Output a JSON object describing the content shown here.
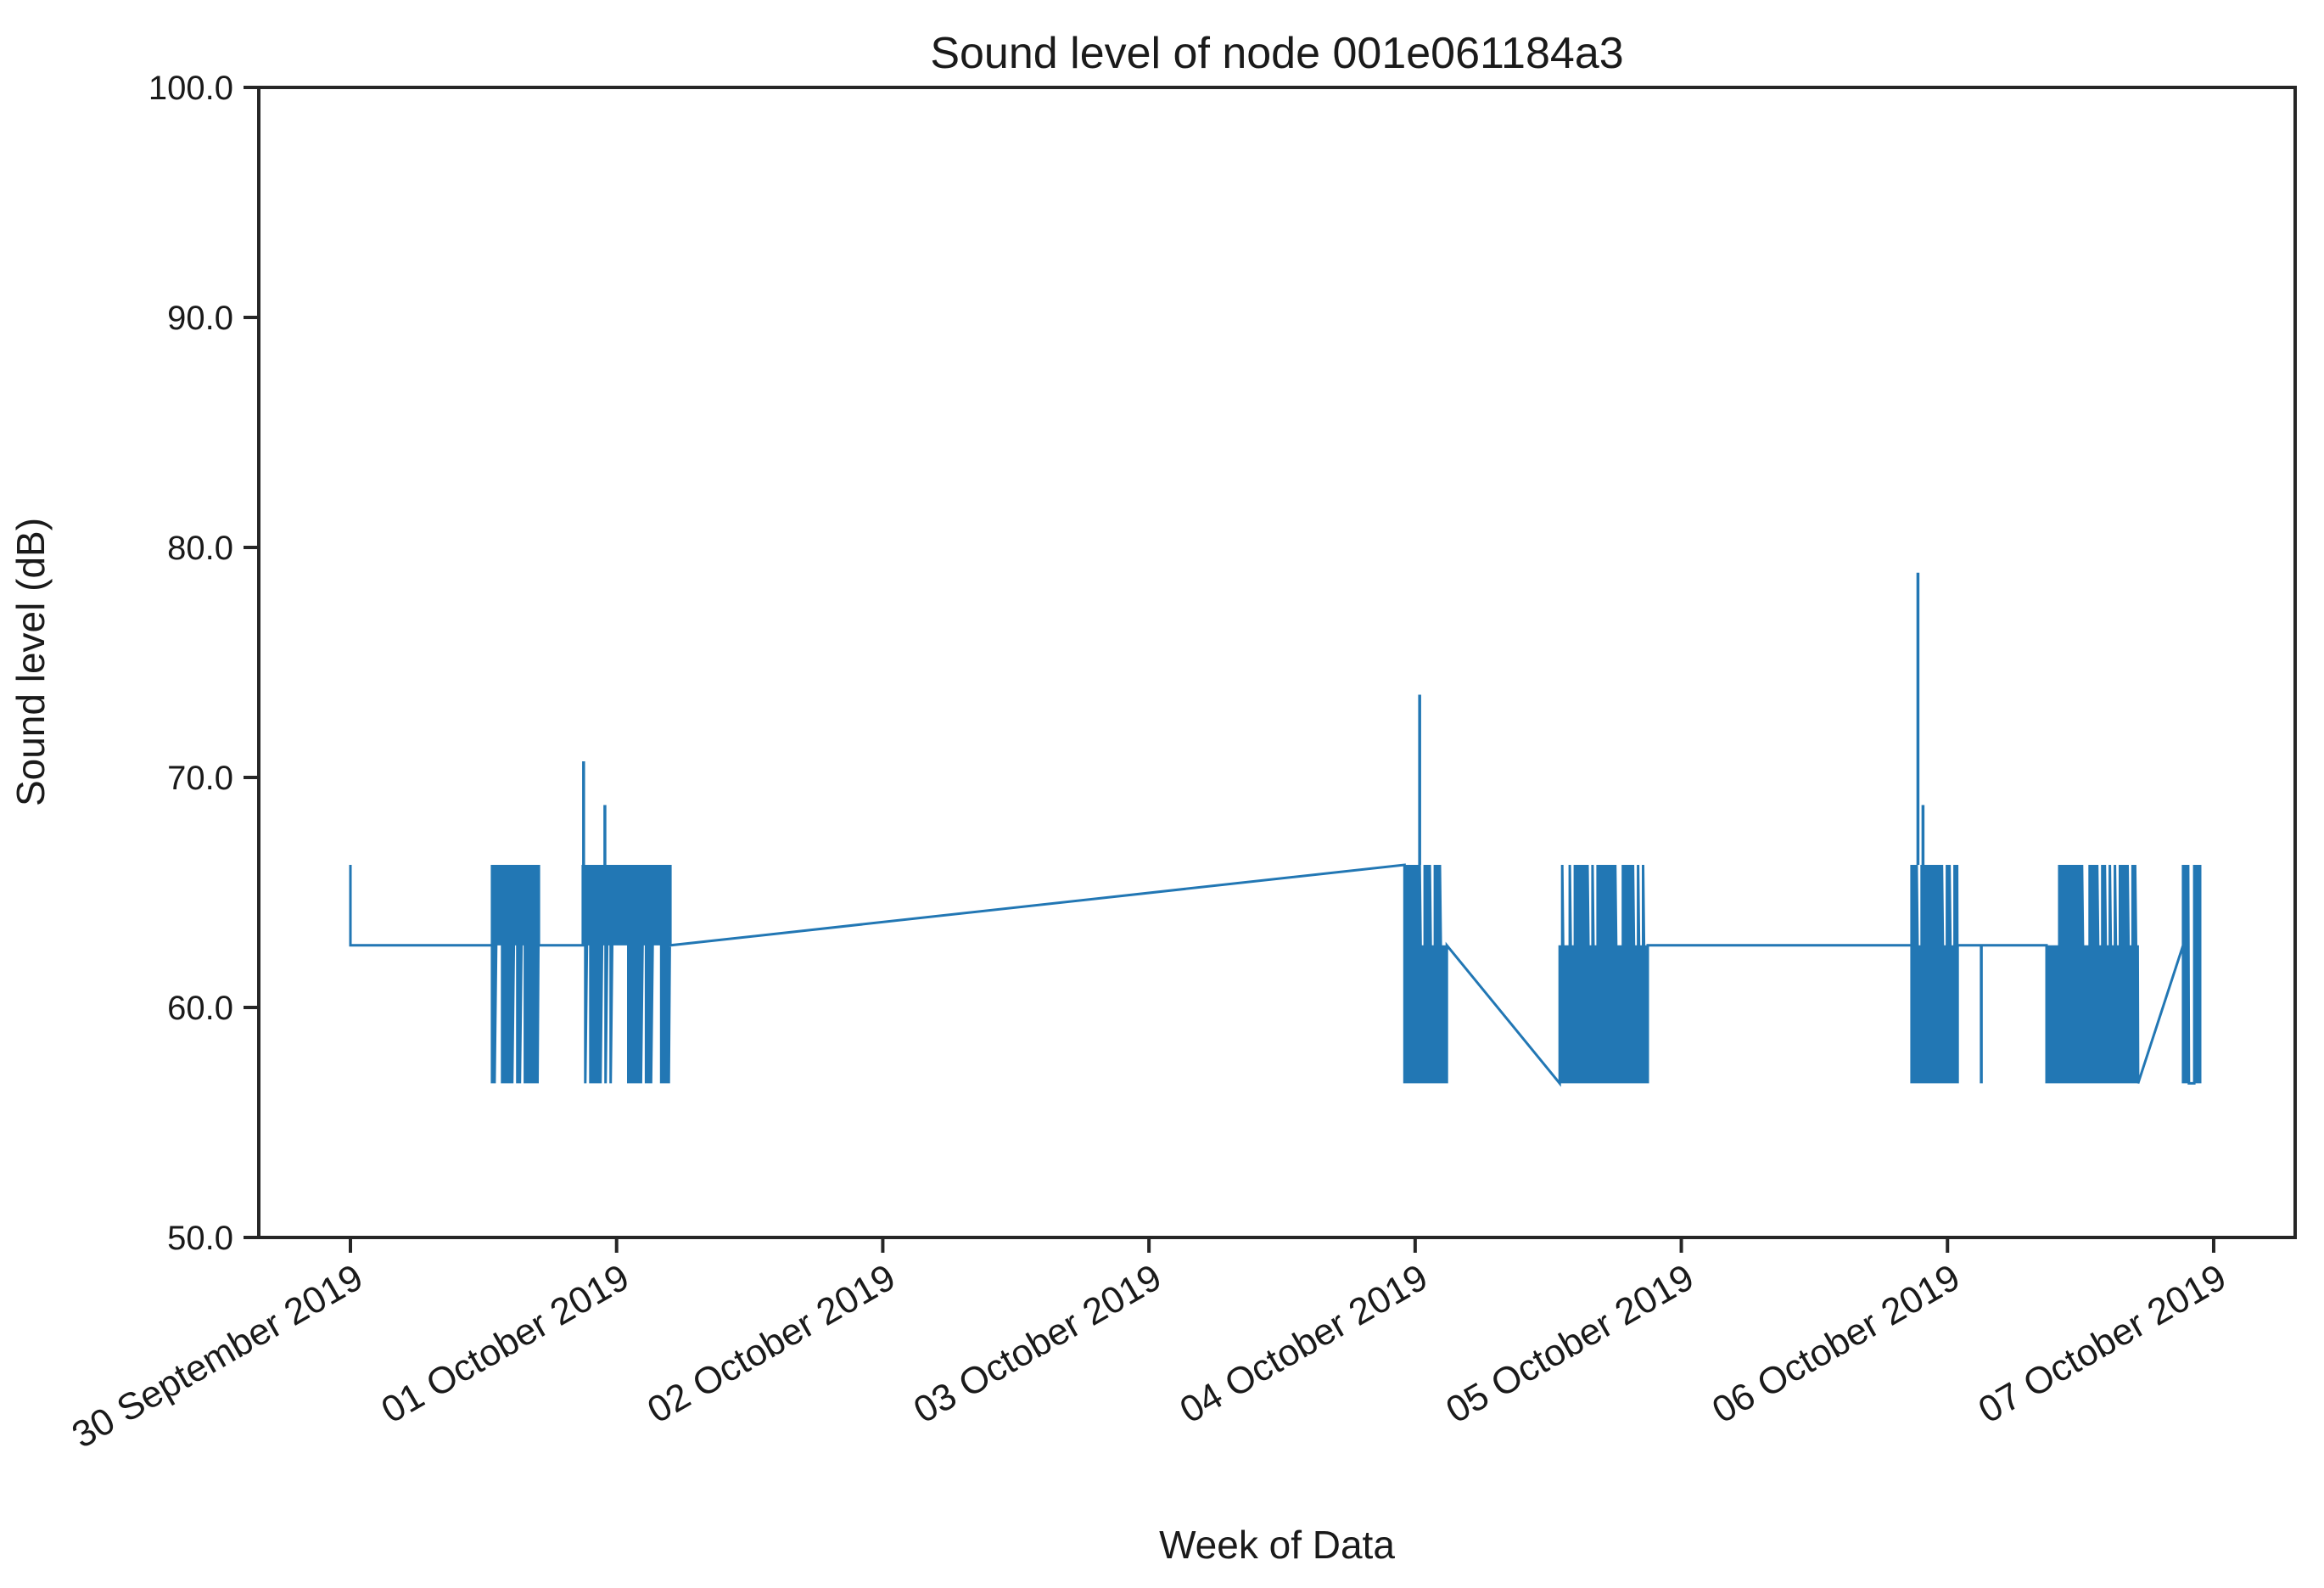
{
  "chart_data": {
    "type": "line",
    "title": "Sound level of node 001e061184a3",
    "node_id": "001e061184a3",
    "xlabel": "Week of Data",
    "ylabel": "Sound level (dB)",
    "ylim": [
      50.0,
      100.0
    ],
    "xlim_days": [
      -0.344,
      7.306
    ],
    "grid": false,
    "legend": null,
    "line_color": "#2277b4",
    "axis_color": "#262626",
    "yticks": {
      "values": [
        50,
        60,
        70,
        80,
        90,
        100
      ],
      "labels": [
        "50.0",
        "60.0",
        "70.0",
        "80.0",
        "90.0",
        "100.0"
      ]
    },
    "xticks": {
      "days": [
        0,
        1,
        2,
        3,
        4,
        5,
        6,
        7
      ],
      "labels": [
        "30 September 2019",
        "01 October 2019",
        "02 October 2019",
        "03 October 2019",
        "04 October 2019",
        "05 October 2019",
        "06 October 2019",
        "07 October 2019"
      ]
    },
    "levels_db": {
      "baseline": 62.7,
      "burst_high": 66.2,
      "burst_low": 56.7
    },
    "spikes": [
      {
        "x": 0.876,
        "tip": 70.7,
        "base": 66.2
      },
      {
        "x": 0.956,
        "tip": 68.8,
        "base": 66.2
      },
      {
        "x": 4.017,
        "tip": 73.6,
        "base": 66.2
      },
      {
        "x": 5.889,
        "tip": 78.9,
        "base": 66.2
      },
      {
        "x": 5.908,
        "tip": 68.8,
        "base": 66.2
      },
      {
        "x": 6.127,
        "tip": 56.7,
        "base": 62.7
      }
    ],
    "segments": [
      {
        "type": "pts",
        "pts": [
          [
            0.0,
            66.2
          ],
          [
            0.0,
            62.7
          ],
          [
            0.532,
            62.7
          ]
        ]
      },
      {
        "type": "burst",
        "x0": 0.532,
        "x1": 0.708,
        "anchor": 66.2,
        "base": 62.7,
        "ext": 56.7,
        "p": 0.58,
        "exit": 62.7
      },
      {
        "type": "pts",
        "pts": [
          [
            0.873,
            62.7
          ]
        ]
      },
      {
        "type": "burst",
        "x0": 0.873,
        "x1": 1.202,
        "anchor": 66.2,
        "base": 62.7,
        "ext": 56.7,
        "p": 0.58,
        "exit": 62.7
      },
      {
        "type": "pts",
        "pts": [
          [
            3.96,
            66.2
          ]
        ]
      },
      {
        "type": "burst",
        "x0": 3.96,
        "x1": 4.119,
        "anchor": 56.7,
        "base": 62.7,
        "ext": 66.2,
        "p": 0.85,
        "exit": 62.7
      },
      {
        "type": "pts",
        "pts": [
          [
            4.543,
            56.7
          ]
        ]
      },
      {
        "type": "burst",
        "x0": 4.543,
        "x1": 4.874,
        "anchor": 56.7,
        "base": 62.7,
        "ext": 66.2,
        "p": 0.78,
        "exit": 62.7
      },
      {
        "type": "pts",
        "pts": [
          [
            5.865,
            62.7
          ]
        ]
      },
      {
        "type": "burst",
        "x0": 5.865,
        "x1": 6.038,
        "anchor": 56.7,
        "base": 62.7,
        "ext": 66.2,
        "p": 0.93,
        "exit": 62.7
      },
      {
        "type": "pts",
        "pts": [
          [
            6.372,
            62.7
          ]
        ]
      },
      {
        "type": "burst",
        "x0": 6.372,
        "x1": 6.42,
        "anchor": 56.7,
        "base": 62.7,
        "ext": 66.2,
        "p": 0.0,
        "exit": 62.7
      },
      {
        "type": "burst",
        "x0": 6.42,
        "x1": 6.716,
        "anchor": 56.7,
        "base": 62.7,
        "ext": 66.2,
        "p": 0.72,
        "exit": 56.7
      },
      {
        "type": "pts",
        "pts": [
          [
            6.885,
            62.7
          ]
        ]
      },
      {
        "type": "burst",
        "x0": 6.885,
        "x1": 6.907,
        "anchor": 56.7,
        "base": 66.2,
        "ext": 66.2,
        "p": 1.0,
        "exit": 56.7
      },
      {
        "type": "pts",
        "pts": [
          [
            6.927,
            56.7
          ]
        ]
      },
      {
        "type": "burst",
        "x0": 6.927,
        "x1": 6.949,
        "anchor": 56.7,
        "base": 66.2,
        "ext": 66.2,
        "p": 1.0,
        "exit": 66.2
      }
    ]
  }
}
